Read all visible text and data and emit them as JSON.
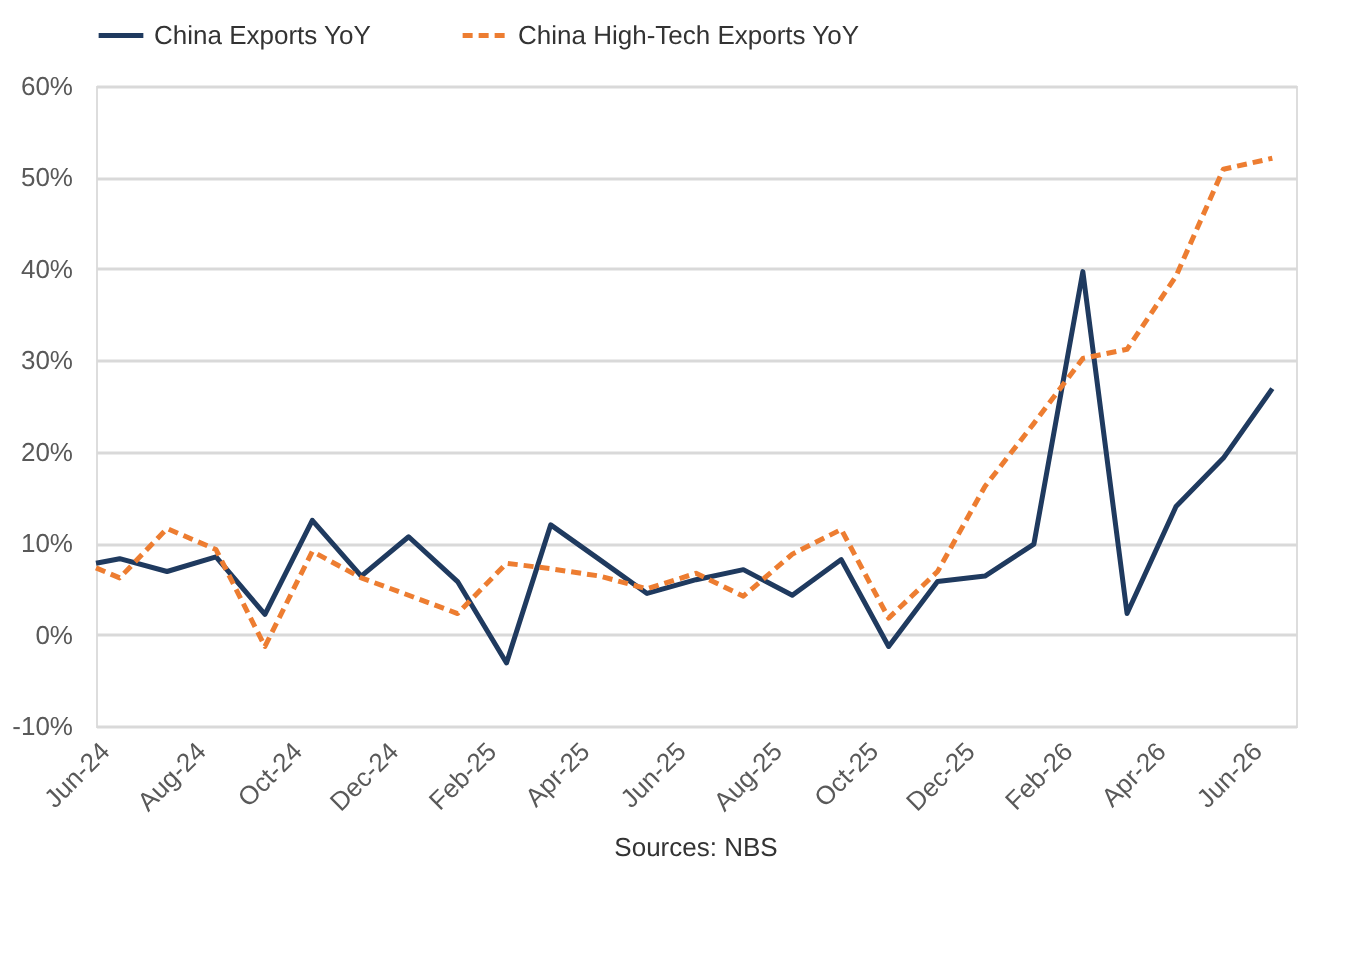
{
  "chart_data": {
    "type": "line",
    "x": [
      "2024-06-01",
      "2024-06-16",
      "2024-07-16",
      "2024-08-16",
      "2024-09-16",
      "2024-10-16",
      "2024-11-16",
      "2024-12-16",
      "2025-01-16",
      "2025-02-16",
      "2025-03-16",
      "2025-04-16",
      "2025-05-16",
      "2025-06-16",
      "2025-07-16",
      "2025-08-16",
      "2025-09-16",
      "2025-10-16",
      "2025-11-16",
      "2025-12-16",
      "2026-01-16",
      "2026-02-16",
      "2026-03-16",
      "2026-04-16",
      "2026-05-16",
      "2026-06-16"
    ],
    "series": [
      {
        "name": "China Exports YoY",
        "color": "#1f3a5f",
        "line_style": "solid",
        "values": [
          7.8,
          8.3,
          6.9,
          8.5,
          2.2,
          12.5,
          6.4,
          10.7,
          5.8,
          -3.1,
          12.0,
          8.2,
          4.5,
          6.0,
          7.1,
          4.3,
          8.2,
          -1.3,
          5.8,
          6.4,
          9.9,
          39.7,
          2.3,
          14.0,
          19.3,
          26.9
        ]
      },
      {
        "name": "China High-Tech Exports YoY",
        "color": "#ed7d31",
        "line_style": "dashed",
        "values": [
          7.3,
          6.2,
          11.6,
          9.3,
          -1.3,
          9.1,
          6.2,
          4.3,
          2.3,
          7.8,
          7.2,
          6.4,
          5.0,
          6.7,
          4.2,
          8.8,
          11.5,
          1.8,
          6.9,
          16.2,
          23.1,
          30.2,
          31.2,
          39.2,
          50.9,
          52.1
        ]
      }
    ],
    "ylim": [
      -10,
      60
    ],
    "yticks": [
      {
        "value": -10,
        "label": "-10%"
      },
      {
        "value": 0,
        "label": "0%"
      },
      {
        "value": 10,
        "label": "10%"
      },
      {
        "value": 20,
        "label": "20%"
      },
      {
        "value": 30,
        "label": "30%"
      },
      {
        "value": 40,
        "label": "40%"
      },
      {
        "value": 50,
        "label": "50%"
      },
      {
        "value": 60,
        "label": "60%"
      }
    ],
    "xlim": [
      "2024-06-01",
      "2026-07-01"
    ],
    "xticks": [
      {
        "value": "2024-06-01",
        "label": "Jun-24"
      },
      {
        "value": "2024-08-01",
        "label": "Aug-24"
      },
      {
        "value": "2024-10-01",
        "label": "Oct-24"
      },
      {
        "value": "2024-12-01",
        "label": "Dec-24"
      },
      {
        "value": "2025-02-01",
        "label": "Feb-25"
      },
      {
        "value": "2025-04-01",
        "label": "Apr-25"
      },
      {
        "value": "2025-06-01",
        "label": "Jun-25"
      },
      {
        "value": "2025-08-01",
        "label": "Aug-25"
      },
      {
        "value": "2025-10-01",
        "label": "Oct-25"
      },
      {
        "value": "2025-12-01",
        "label": "Dec-25"
      },
      {
        "value": "2026-02-01",
        "label": "Feb-26"
      },
      {
        "value": "2026-04-01",
        "label": "Apr-26"
      },
      {
        "value": "2026-06-01",
        "label": "Jun-26"
      }
    ],
    "grid": "y",
    "legend": "top",
    "annotations": [
      "Sources: NBS"
    ]
  }
}
